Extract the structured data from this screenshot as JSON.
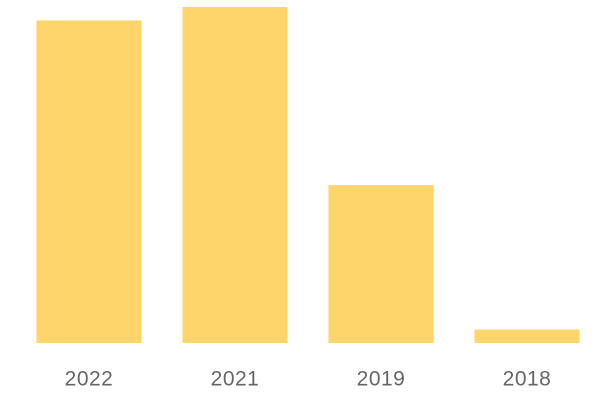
{
  "chart_data": {
    "type": "bar",
    "categories": [
      "2022",
      "2021",
      "2019",
      "2018"
    ],
    "values": [
      96,
      100,
      47,
      4
    ],
    "color": "#fdd56a"
  }
}
